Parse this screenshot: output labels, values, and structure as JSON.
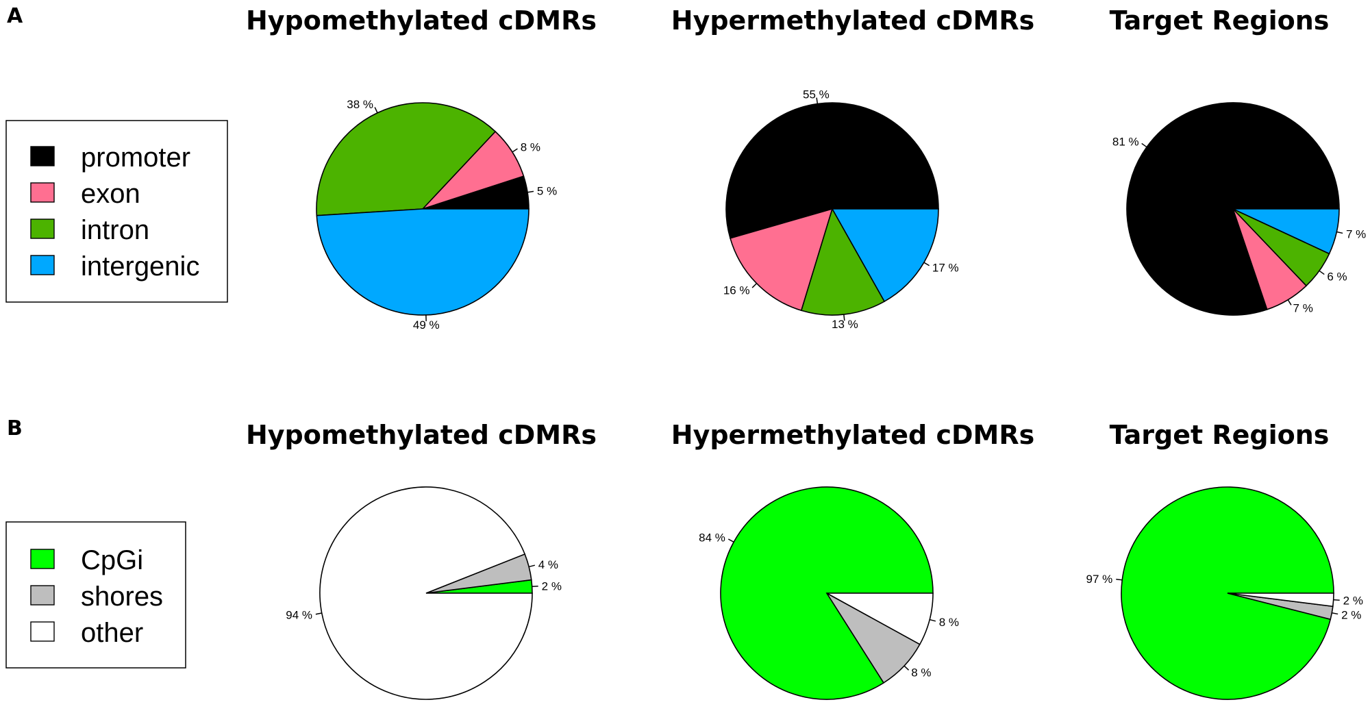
{
  "panels": [
    {
      "letter": "A",
      "legend": [
        {
          "label": "promoter",
          "color": "#000000"
        },
        {
          "label": "exon",
          "color": "#FF6F91"
        },
        {
          "label": "intron",
          "color": "#4CB300"
        },
        {
          "label": "intergenic",
          "color": "#00A8FF"
        }
      ]
    },
    {
      "letter": "B",
      "legend": [
        {
          "label": "CpGi",
          "color": "#00FF00"
        },
        {
          "label": "shores",
          "color": "#BEBEBE"
        },
        {
          "label": "other",
          "color": "#FFFFFF"
        }
      ]
    }
  ],
  "chart_data": [
    {
      "type": "pie",
      "panel": "A",
      "title": "Hypomethylated cDMRs",
      "categories": [
        "promoter",
        "exon",
        "intron",
        "intergenic"
      ],
      "values": [
        5,
        8,
        38,
        49
      ],
      "labels": [
        "5 %",
        "8 %",
        "38 %",
        "49 %"
      ],
      "colors": [
        "#000000",
        "#FF6F91",
        "#4CB300",
        "#00A8FF"
      ]
    },
    {
      "type": "pie",
      "panel": "A",
      "title": "Hypermethylated cDMRs",
      "categories": [
        "promoter",
        "exon",
        "intron",
        "intergenic"
      ],
      "values": [
        55,
        16,
        13,
        17
      ],
      "labels": [
        "55 %",
        "16 %",
        "13 %",
        "17 %"
      ],
      "colors": [
        "#000000",
        "#FF6F91",
        "#4CB300",
        "#00A8FF"
      ]
    },
    {
      "type": "pie",
      "panel": "A",
      "title": "Target Regions",
      "categories": [
        "promoter",
        "exon",
        "intron",
        "intergenic"
      ],
      "values": [
        81,
        7,
        6,
        7
      ],
      "labels": [
        "81 %",
        "7 %",
        "6 %",
        "7 %"
      ],
      "colors": [
        "#000000",
        "#FF6F91",
        "#4CB300",
        "#00A8FF"
      ]
    },
    {
      "type": "pie",
      "panel": "B",
      "title": "Hypomethylated cDMRs",
      "categories": [
        "CpGi",
        "shores",
        "other"
      ],
      "values": [
        2,
        4,
        94
      ],
      "labels": [
        "2 %",
        "4 %",
        "94 %"
      ],
      "colors": [
        "#00FF00",
        "#BEBEBE",
        "#FFFFFF"
      ]
    },
    {
      "type": "pie",
      "panel": "B",
      "title": "Hypermethylated cDMRs",
      "categories": [
        "CpGi",
        "shores",
        "other"
      ],
      "values": [
        84,
        8,
        8
      ],
      "labels": [
        "84 %",
        "8 %",
        "8 %"
      ],
      "colors": [
        "#00FF00",
        "#BEBEBE",
        "#FFFFFF"
      ]
    },
    {
      "type": "pie",
      "panel": "B",
      "title": "Target Regions",
      "categories": [
        "CpGi",
        "shores",
        "other"
      ],
      "values": [
        97,
        2,
        2
      ],
      "labels": [
        "97 %",
        "2 %",
        "2 %"
      ],
      "colors": [
        "#00FF00",
        "#BEBEBE",
        "#FFFFFF"
      ]
    }
  ]
}
